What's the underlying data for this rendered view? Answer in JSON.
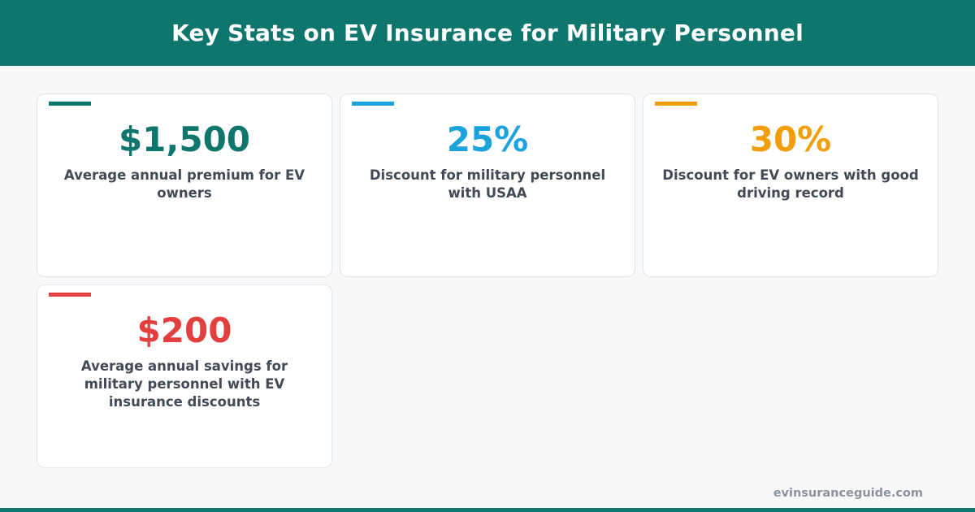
{
  "header": {
    "title": "Key Stats on EV Insurance for Military Personnel",
    "color": "#0f766e"
  },
  "stats": [
    {
      "value": "$1,500",
      "label": "Average annual premium for EV owners",
      "color": "#0f766e"
    },
    {
      "value": "25%",
      "label": "Discount for military personnel with USAA",
      "color": "#1aa3dc"
    },
    {
      "value": "30%",
      "label": "Discount for EV owners with good driving record",
      "color": "#f29e0c"
    },
    {
      "value": "$200",
      "label": "Average annual savings for military personnel with EV insurance discounts",
      "color": "#e2403f"
    }
  ],
  "footer": {
    "url": "evinsuranceguide.com"
  }
}
